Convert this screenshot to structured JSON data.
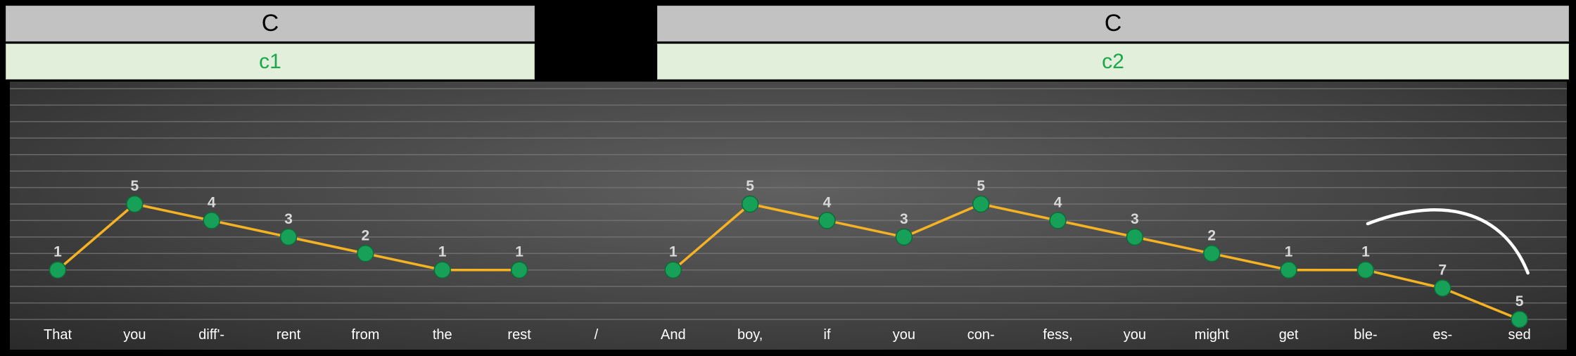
{
  "sections": [
    {
      "header": "C",
      "subheader": "c1"
    },
    {
      "header": "C",
      "subheader": "c2"
    }
  ],
  "colors": {
    "line": "#f5b324",
    "marker": "#17a058",
    "label": "#d9d9d9",
    "grid": "#7a7a7a",
    "header_bg": "#c2c2c2",
    "subheader_bg": "#e2efda",
    "subheader_text": "#1aa84a"
  },
  "chart_data": {
    "type": "line",
    "categories": [
      "That",
      "you",
      "diff'-",
      "rent",
      "from",
      "the",
      "rest",
      "/",
      "And",
      "boy,",
      "if",
      "you",
      "con-",
      "fess,",
      "you",
      "might",
      "get",
      "ble-",
      "es-",
      "sed"
    ],
    "series": [
      {
        "segment": 1,
        "points": [
          {
            "x": "That",
            "y": 1,
            "label": "1"
          },
          {
            "x": "you",
            "y": 5,
            "label": "5"
          },
          {
            "x": "diff'-",
            "y": 4,
            "label": "4"
          },
          {
            "x": "rent",
            "y": 3,
            "label": "3"
          },
          {
            "x": "from",
            "y": 2,
            "label": "2"
          },
          {
            "x": "the",
            "y": 1,
            "label": "1"
          },
          {
            "x": "rest",
            "y": 1,
            "label": "1"
          }
        ]
      },
      {
        "segment": 2,
        "points": [
          {
            "x": "And",
            "y": 1,
            "label": "1"
          },
          {
            "x": "boy,",
            "y": 5,
            "label": "5"
          },
          {
            "x": "if",
            "y": 4,
            "label": "4"
          },
          {
            "x": "you",
            "y": 3,
            "label": "3"
          },
          {
            "x": "con-",
            "y": 5,
            "label": "5"
          },
          {
            "x": "fess,",
            "y": 4,
            "label": "4"
          },
          {
            "x": "you",
            "y": 3,
            "label": "3"
          },
          {
            "x": "might",
            "y": 2,
            "label": "2"
          },
          {
            "x": "get",
            "y": 1,
            "label": "1"
          },
          {
            "x": "ble-",
            "y": 1,
            "label": "1"
          },
          {
            "x": "es-",
            "y": -0.1,
            "label": "7"
          },
          {
            "x": "sed",
            "y": -2,
            "label": "5"
          }
        ]
      }
    ],
    "annotations": [
      {
        "type": "slur",
        "from": "ble-",
        "to": "sed"
      }
    ],
    "ylim": [
      -2,
      12
    ],
    "grid": true,
    "legend": "none"
  }
}
